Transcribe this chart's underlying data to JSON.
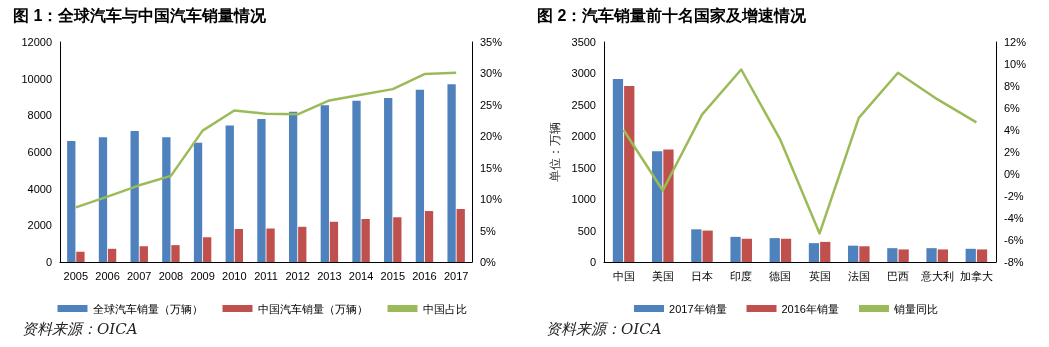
{
  "chart_data": [
    {
      "type": "bar",
      "title": "图 1：全球汽车与中国汽车销量情况",
      "categories": [
        "2005",
        "2006",
        "2007",
        "2008",
        "2009",
        "2010",
        "2011",
        "2012",
        "2013",
        "2014",
        "2015",
        "2016",
        "2017"
      ],
      "series": [
        {
          "name": "全球汽车销量（万辆）",
          "color": "#4f81bd",
          "values": [
            6600,
            6800,
            7150,
            6800,
            6500,
            7450,
            7800,
            8200,
            8550,
            8800,
            8950,
            9400,
            9700
          ]
        },
        {
          "name": "中国汽车销量（万辆）",
          "color": "#c0504d",
          "values": [
            560,
            720,
            860,
            920,
            1350,
            1800,
            1830,
            1920,
            2190,
            2340,
            2440,
            2780,
            2890
          ]
        },
        {
          "name": "中国占比",
          "type": "line",
          "axis": "y2",
          "color": "#9bbb59",
          "values": [
            8.7,
            10.4,
            12.2,
            13.7,
            20.9,
            24.1,
            23.6,
            23.5,
            25.7,
            26.6,
            27.5,
            29.9,
            30.1
          ]
        }
      ],
      "ylim": [
        0,
        12000
      ],
      "yticks": [
        0,
        2000,
        4000,
        6000,
        8000,
        10000,
        12000
      ],
      "y2lim": [
        0,
        35
      ],
      "y2ticks": [
        {
          "value": 0,
          "label": "0%"
        },
        {
          "value": 5,
          "label": "5%"
        },
        {
          "value": 10,
          "label": "10%"
        },
        {
          "value": 15,
          "label": "15%"
        },
        {
          "value": 20,
          "label": "20%"
        },
        {
          "value": 25,
          "label": "25%"
        },
        {
          "value": 30,
          "label": "30%"
        },
        {
          "value": 35,
          "label": "35%"
        }
      ],
      "grid": false,
      "legend": "bottom",
      "marker": "none",
      "annotations": [
        "资料来源：OICA"
      ]
    },
    {
      "type": "bar",
      "title": "图 2：汽车销量前十名国家及增速情况",
      "ylabel": "单位：万辆",
      "categories": [
        "中国",
        "美国",
        "日本",
        "印度",
        "德国",
        "英国",
        "法国",
        "巴西",
        "意大利",
        "加拿大"
      ],
      "series": [
        {
          "name": "2017年销量",
          "color": "#4f81bd",
          "values": [
            2910,
            1760,
            520,
            400,
            380,
            300,
            260,
            220,
            220,
            210
          ]
        },
        {
          "name": "2016年销量",
          "color": "#c0504d",
          "values": [
            2800,
            1790,
            500,
            370,
            370,
            320,
            250,
            200,
            200,
            200
          ]
        },
        {
          "name": "销量同比",
          "type": "line",
          "axis": "y2",
          "color": "#9bbb59",
          "values": [
            4.0,
            -1.5,
            5.4,
            9.5,
            3.1,
            -5.4,
            5.1,
            9.2,
            6.8,
            4.7
          ]
        }
      ],
      "ylim": [
        0,
        3500
      ],
      "yticks": [
        0,
        500,
        1000,
        1500,
        2000,
        2500,
        3000,
        3500
      ],
      "y2lim": [
        -8,
        12
      ],
      "y2ticks": [
        {
          "value": -8,
          "label": "-8%"
        },
        {
          "value": -6,
          "label": "-6%"
        },
        {
          "value": -4,
          "label": "-4%"
        },
        {
          "value": -2,
          "label": "-2%"
        },
        {
          "value": 0,
          "label": "0%"
        },
        {
          "value": 2,
          "label": "2%"
        },
        {
          "value": 4,
          "label": "4%"
        },
        {
          "value": 6,
          "label": "6%"
        },
        {
          "value": 8,
          "label": "8%"
        },
        {
          "value": 10,
          "label": "10%"
        },
        {
          "value": 12,
          "label": "12%"
        }
      ],
      "grid": false,
      "legend": "bottom",
      "marker": "none",
      "annotations": [
        "资料来源：OICA"
      ]
    }
  ]
}
